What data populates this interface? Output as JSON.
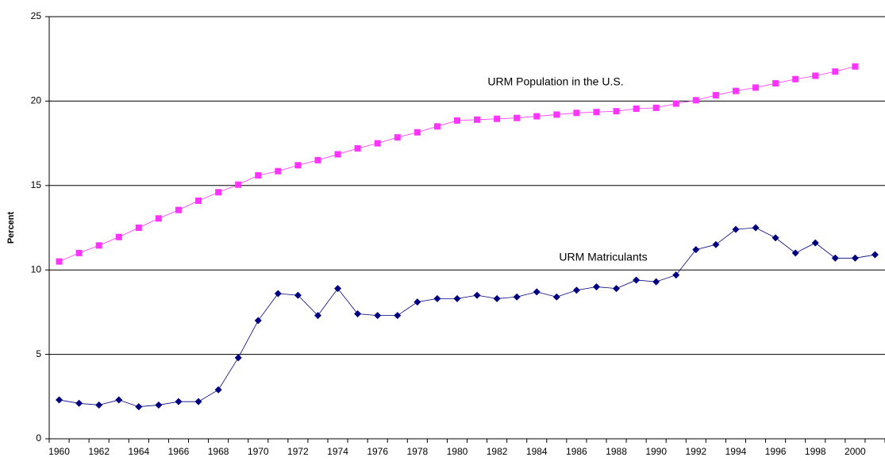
{
  "chart_data": {
    "type": "line",
    "y_label": "Percent",
    "annotations": [
      "URM Population in the U.S.",
      "URM Matriculants"
    ],
    "categories": [
      "1960",
      null,
      "1962",
      null,
      "1964",
      null,
      "1966",
      null,
      "1968",
      null,
      "1970",
      null,
      "1972",
      null,
      "1974",
      null,
      "1976",
      null,
      "1978",
      null,
      "1980",
      null,
      "1982",
      null,
      "1984",
      null,
      "1986",
      null,
      "1988",
      null,
      "1990",
      null,
      "1992",
      null,
      "1994",
      null,
      "1996",
      null,
      "1998",
      null,
      "2000",
      null
    ],
    "series": [
      {
        "name": "URM Population in the U.S.",
        "color": "#ff33ff",
        "marker": "square",
        "values": [
          10.5,
          11.0,
          11.45,
          11.95,
          12.5,
          13.05,
          13.55,
          14.1,
          14.6,
          15.05,
          15.6,
          15.85,
          16.2,
          16.5,
          16.85,
          17.2,
          17.5,
          17.85,
          18.15,
          18.5,
          18.85,
          18.9,
          18.95,
          19.0,
          19.1,
          19.2,
          19.3,
          19.35,
          19.4,
          19.55,
          19.6,
          19.85,
          20.05,
          20.35,
          20.6,
          20.8,
          21.05,
          21.3,
          21.5,
          21.75,
          22.05,
          null
        ]
      },
      {
        "name": "URM Matriculants",
        "color": "#000080",
        "marker": "diamond",
        "values": [
          2.3,
          2.1,
          2.0,
          2.3,
          1.9,
          2.0,
          2.2,
          2.2,
          2.9,
          4.8,
          7.0,
          8.6,
          8.5,
          7.3,
          8.9,
          7.4,
          7.3,
          7.3,
          8.1,
          8.3,
          8.3,
          8.5,
          8.3,
          8.4,
          8.7,
          8.4,
          8.8,
          9.0,
          8.9,
          9.4,
          9.3,
          9.7,
          11.2,
          11.5,
          12.4,
          12.5,
          11.9,
          11.0,
          11.6,
          10.7,
          10.7,
          10.9
        ]
      }
    ],
    "ylim": [
      0,
      25
    ],
    "yticks": [
      0,
      5,
      10,
      15,
      20,
      25
    ],
    "grid": true
  }
}
